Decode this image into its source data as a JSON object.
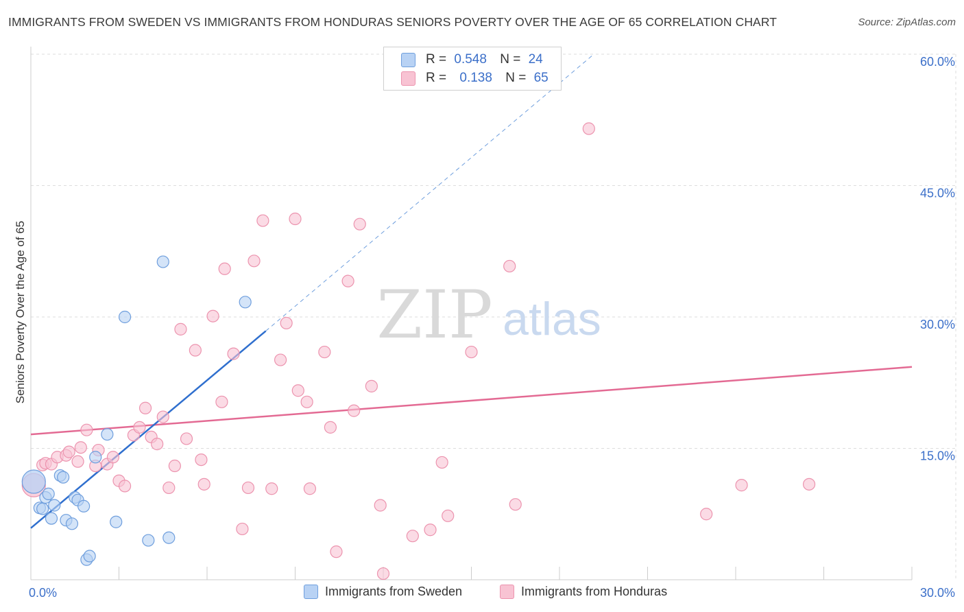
{
  "title": "IMMIGRANTS FROM SWEDEN VS IMMIGRANTS FROM HONDURAS SENIORS POVERTY OVER THE AGE OF 65 CORRELATION CHART",
  "source": "Source: ZipAtlas.com",
  "watermark": {
    "zip": "ZIP",
    "atlas": "atlas"
  },
  "legend": {
    "r_label": "R =",
    "n_label": "N =",
    "sweden": {
      "r": "0.548",
      "n": "24"
    },
    "honduras": {
      "r": "0.138",
      "n": "65"
    }
  },
  "colors": {
    "sweden_fill": "#b8d2f4",
    "sweden_stroke": "#6e9edd",
    "sweden_line": "#2f6fce",
    "honduras_fill": "#f8c3d3",
    "honduras_stroke": "#ec93ae",
    "honduras_line": "#e36a93",
    "axis_label": "#3b6fc9",
    "grid": "#dcdcdc"
  },
  "chart_data": {
    "type": "scatter",
    "title": "IMMIGRANTS FROM SWEDEN VS IMMIGRANTS FROM HONDURAS SENIORS POVERTY OVER THE AGE OF 65 CORRELATION CHART",
    "xlabel": "",
    "ylabel": "Seniors Poverty Over the Age of 65",
    "xlim": [
      0,
      30
    ],
    "ylim": [
      0,
      60
    ],
    "x_tick_labels": [
      "0.0%",
      "30.0%"
    ],
    "y_tick_labels": [
      "15.0%",
      "30.0%",
      "45.0%",
      "60.0%"
    ],
    "y_ticks": [
      15,
      30,
      45,
      60
    ],
    "grid": true,
    "legend_position": "top-center",
    "series": [
      {
        "name": "Immigrants from Sweden",
        "points": [
          [
            0.1,
            11.2
          ],
          [
            0.3,
            8.2
          ],
          [
            0.4,
            8.1
          ],
          [
            0.5,
            9.4
          ],
          [
            0.6,
            9.8
          ],
          [
            0.7,
            7.0
          ],
          [
            0.8,
            8.5
          ],
          [
            1.0,
            11.9
          ],
          [
            1.1,
            11.7
          ],
          [
            1.2,
            6.8
          ],
          [
            1.4,
            6.4
          ],
          [
            1.5,
            9.4
          ],
          [
            1.6,
            9.1
          ],
          [
            1.8,
            8.4
          ],
          [
            1.9,
            2.3
          ],
          [
            2.0,
            2.7
          ],
          [
            2.2,
            14.0
          ],
          [
            2.6,
            16.6
          ],
          [
            2.9,
            6.6
          ],
          [
            3.2,
            30.0
          ],
          [
            4.0,
            4.5
          ],
          [
            4.5,
            36.3
          ],
          [
            4.7,
            4.8
          ],
          [
            7.3,
            31.7
          ]
        ],
        "trend": {
          "x": [
            0,
            8.0
          ],
          "y": [
            5.9,
            28.4
          ]
        },
        "trend_extension": {
          "x": [
            8.0,
            19.1
          ],
          "y": [
            28.4,
            59.8
          ]
        }
      },
      {
        "name": "Immigrants from Honduras",
        "points": [
          [
            0.1,
            10.8
          ],
          [
            0.4,
            13.1
          ],
          [
            0.5,
            13.3
          ],
          [
            0.7,
            13.2
          ],
          [
            0.9,
            14.0
          ],
          [
            1.2,
            14.2
          ],
          [
            1.3,
            14.6
          ],
          [
            1.6,
            13.5
          ],
          [
            1.7,
            15.1
          ],
          [
            1.9,
            17.1
          ],
          [
            2.2,
            13.0
          ],
          [
            2.3,
            14.8
          ],
          [
            2.6,
            13.2
          ],
          [
            2.8,
            14.0
          ],
          [
            3.0,
            11.3
          ],
          [
            3.2,
            10.7
          ],
          [
            3.5,
            16.5
          ],
          [
            3.7,
            17.4
          ],
          [
            3.9,
            19.6
          ],
          [
            4.1,
            16.3
          ],
          [
            4.3,
            15.5
          ],
          [
            4.5,
            18.6
          ],
          [
            4.7,
            10.5
          ],
          [
            4.9,
            13.0
          ],
          [
            5.1,
            28.6
          ],
          [
            5.3,
            16.1
          ],
          [
            5.6,
            26.2
          ],
          [
            5.8,
            13.7
          ],
          [
            5.9,
            10.9
          ],
          [
            6.2,
            30.1
          ],
          [
            6.5,
            20.3
          ],
          [
            6.6,
            35.5
          ],
          [
            6.9,
            25.8
          ],
          [
            7.2,
            5.8
          ],
          [
            7.4,
            10.5
          ],
          [
            7.6,
            36.4
          ],
          [
            7.9,
            41.0
          ],
          [
            8.2,
            10.4
          ],
          [
            8.5,
            25.1
          ],
          [
            8.7,
            29.3
          ],
          [
            9.0,
            41.2
          ],
          [
            9.1,
            21.6
          ],
          [
            9.4,
            20.3
          ],
          [
            9.5,
            10.4
          ],
          [
            10.0,
            26.0
          ],
          [
            10.2,
            17.4
          ],
          [
            10.4,
            3.2
          ],
          [
            10.8,
            34.1
          ],
          [
            11.0,
            19.3
          ],
          [
            11.2,
            40.6
          ],
          [
            11.6,
            22.1
          ],
          [
            11.9,
            8.5
          ],
          [
            12.0,
            0.7
          ],
          [
            13.0,
            5.0
          ],
          [
            13.6,
            5.7
          ],
          [
            14.0,
            13.4
          ],
          [
            14.2,
            7.3
          ],
          [
            15.0,
            26.0
          ],
          [
            16.3,
            35.8
          ],
          [
            16.5,
            8.6
          ],
          [
            19.0,
            51.5
          ],
          [
            23.0,
            7.5
          ],
          [
            24.2,
            10.8
          ],
          [
            26.5,
            10.9
          ],
          [
            16.0,
            57.8
          ]
        ],
        "trend": {
          "x": [
            0,
            30
          ],
          "y": [
            16.6,
            24.3
          ]
        }
      }
    ]
  }
}
